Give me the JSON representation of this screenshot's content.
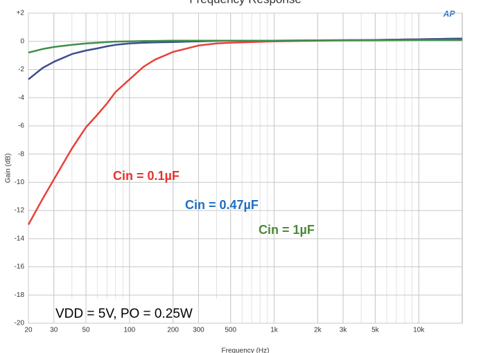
{
  "chart_data": {
    "type": "line",
    "title": "Frequency Response",
    "xlabel": "Frequency (Hz)",
    "ylabel": "Gain (dB)",
    "logo": "AP",
    "x": [
      20,
      25,
      30,
      40,
      50,
      60,
      70,
      80,
      100,
      125,
      150,
      200,
      250,
      300,
      400,
      500,
      700,
      1000,
      2000,
      5000,
      10000,
      20000
    ],
    "series": [
      {
        "name": "Cin = 0.1µF",
        "color": "#e8403a",
        "values": [
          -13,
          -11.2,
          -9.8,
          -7.6,
          -6.1,
          -5.2,
          -4.4,
          -3.6,
          -2.7,
          -1.8,
          -1.3,
          -0.75,
          -0.5,
          -0.3,
          -0.15,
          -0.1,
          -0.05,
          0,
          0.05,
          0.1,
          0.15,
          0.2
        ]
      },
      {
        "name": "Cin = 0.47µF",
        "color": "#3b4e8c",
        "values": [
          -2.7,
          -1.9,
          -1.45,
          -0.9,
          -0.65,
          -0.5,
          -0.35,
          -0.25,
          -0.15,
          -0.1,
          -0.07,
          -0.05,
          -0.02,
          0,
          0.03,
          0.05,
          0.05,
          0.05,
          0.07,
          0.1,
          0.15,
          0.2
        ]
      },
      {
        "name": "Cin = 1µF",
        "color": "#3f8f4a",
        "values": [
          -0.8,
          -0.55,
          -0.4,
          -0.25,
          -0.15,
          -0.1,
          -0.05,
          -0.02,
          0,
          0.02,
          0.03,
          0.05,
          0.05,
          0.05,
          0.05,
          0.05,
          0.05,
          0.05,
          0.07,
          0.08,
          0.1,
          0.1
        ]
      }
    ],
    "annotation": "VDD = 5V, PO = 0.25W",
    "xlim": [
      20,
      20000
    ],
    "ylim": [
      -20,
      2
    ],
    "log_x": true,
    "grid": true,
    "xticks": [
      20,
      30,
      50,
      100,
      200,
      300,
      500,
      {
        "value": 1000,
        "label": "1k"
      },
      {
        "value": 2000,
        "label": "2k"
      },
      {
        "value": 3000,
        "label": "3k"
      },
      {
        "value": 5000,
        "label": "5k"
      },
      {
        "value": 10000,
        "label": "10k"
      }
    ],
    "yticks": [
      {
        "value": 2,
        "label": "+2"
      },
      0,
      -2,
      -4,
      -6,
      -8,
      -10,
      -12,
      -14,
      -16,
      -18,
      -20
    ]
  }
}
